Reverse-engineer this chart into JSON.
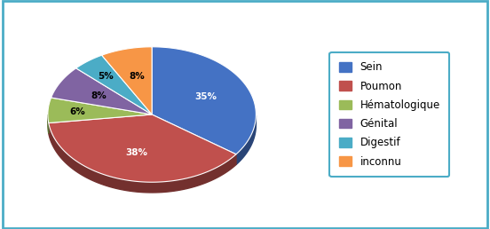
{
  "labels": [
    "Sein",
    "Poumon",
    "Hématologique",
    "Génital",
    "Digestif",
    "inconnu"
  ],
  "values": [
    35,
    38,
    6,
    8,
    5,
    8
  ],
  "colors": [
    "#4472C4",
    "#C0504D",
    "#9BBB59",
    "#8064A2",
    "#4BACC6",
    "#F79646"
  ],
  "pct_labels": [
    "35%",
    "38%",
    "6%",
    "8%",
    "5%",
    "8%"
  ],
  "startangle": 90,
  "background_color": "#ffffff",
  "border_color": "#4BACC6",
  "shadow_color": "#555555"
}
